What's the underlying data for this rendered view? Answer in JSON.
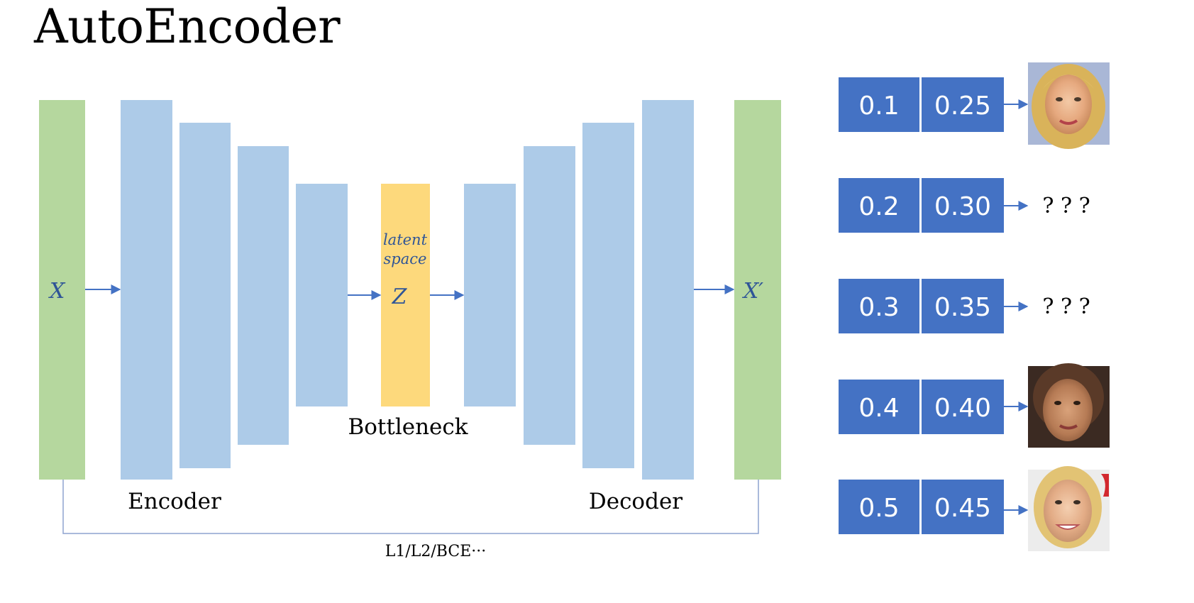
{
  "title": "AutoEncoder",
  "diagram": {
    "input_label": "X",
    "output_label": "X′",
    "latent_label": "Z",
    "latent_caption_line1": "latent",
    "latent_caption_line2": "space",
    "encoder_label": "Encoder",
    "decoder_label": "Decoder",
    "bottleneck_label": "Bottleneck",
    "loss_label": "L1/L2/BCE···",
    "colors": {
      "input_output": "#b5d79e",
      "layers": "#adcbe8",
      "latent": "#fdd97c",
      "arrows": "#4472c4"
    }
  },
  "samples": [
    {
      "v1": "0.1",
      "v2": "0.25",
      "output": "face-image"
    },
    {
      "v1": "0.2",
      "v2": "0.30",
      "output": "? ? ?"
    },
    {
      "v1": "0.3",
      "v2": "0.35",
      "output": "? ? ?"
    },
    {
      "v1": "0.4",
      "v2": "0.40",
      "output": "face-image"
    },
    {
      "v1": "0.5",
      "v2": "0.45",
      "output": "face-image"
    }
  ]
}
